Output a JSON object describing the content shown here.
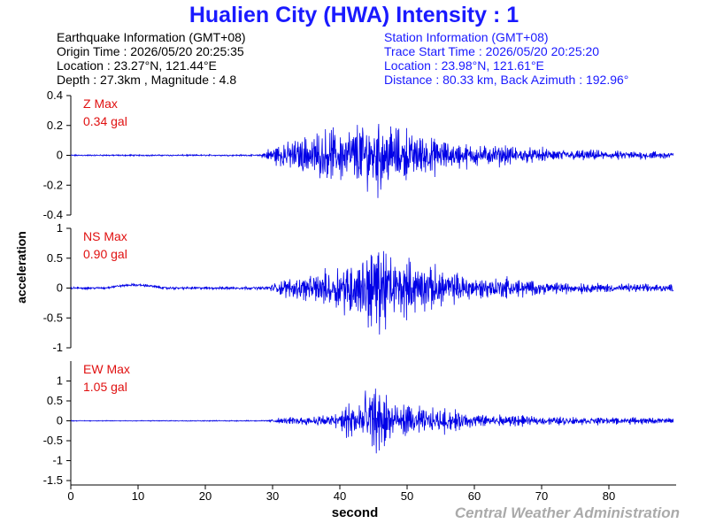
{
  "title": "Hualien City (HWA) Intensity : 1",
  "earthquake_info": {
    "heading": "Earthquake Information (GMT+08)",
    "origin_time": "Origin Time : 2026/05/20 20:25:35",
    "location": "Location : 23.27°N, 121.44°E",
    "depth_magnitude": "Depth : 27.3km , Magnitude : 4.8"
  },
  "station_info": {
    "heading": "Station Information (GMT+08)",
    "trace_start": "Trace Start Time : 2026/05/20 20:25:20",
    "location": "Location : 23.98°N, 121.61°E",
    "distance": "Distance : 80.33 km, Back Azimuth : 192.96°"
  },
  "footer": "Central Weather Administration",
  "colors": {
    "trace": "#0000e6",
    "title": "#1a1aff",
    "max_label": "#e01010",
    "footer": "#aaaaaa"
  },
  "chart_data": {
    "type": "line",
    "xlabel": "second",
    "ylabel": "acceleration",
    "xlim": [
      0,
      90
    ],
    "x_ticks": [
      0,
      10,
      20,
      30,
      40,
      50,
      60,
      70,
      80
    ],
    "x_tick_labels": [
      "0",
      "10",
      "20",
      "30",
      "40",
      "50",
      "60",
      "70",
      "80"
    ],
    "panels": [
      {
        "name": "Z",
        "max_label": "Z Max",
        "max_value": "0.34 gal",
        "ylim": [
          -0.4,
          0.4
        ],
        "y_ticks": [
          0.4,
          0.2,
          0,
          -0.2,
          -0.4
        ],
        "y_tick_labels": [
          "0.4",
          "0.2",
          "0",
          "-0.2",
          "-0.4"
        ],
        "envelope": [
          [
            0,
            0.005
          ],
          [
            28,
            0.006
          ],
          [
            29,
            0.04
          ],
          [
            31,
            0.09
          ],
          [
            35,
            0.15
          ],
          [
            40,
            0.2
          ],
          [
            44,
            0.25
          ],
          [
            46,
            0.3
          ],
          [
            48,
            0.2
          ],
          [
            52,
            0.16
          ],
          [
            56,
            0.1
          ],
          [
            60,
            0.08
          ],
          [
            65,
            0.07
          ],
          [
            70,
            0.05
          ],
          [
            80,
            0.035
          ],
          [
            90,
            0.03
          ]
        ]
      },
      {
        "name": "NS",
        "max_label": "NS Max",
        "max_value": "0.90 gal",
        "ylim": [
          -1,
          1
        ],
        "y_ticks": [
          1,
          0.5,
          0,
          -0.5,
          -1
        ],
        "y_tick_labels": [
          "1",
          "0.5",
          "0",
          "-0.5",
          "-1"
        ],
        "envelope": [
          [
            0,
            0.02
          ],
          [
            29,
            0.03
          ],
          [
            31,
            0.15
          ],
          [
            36,
            0.25
          ],
          [
            40,
            0.45
          ],
          [
            43,
            0.6
          ],
          [
            46,
            0.85
          ],
          [
            48,
            0.55
          ],
          [
            52,
            0.45
          ],
          [
            55,
            0.35
          ],
          [
            60,
            0.2
          ],
          [
            65,
            0.2
          ],
          [
            70,
            0.12
          ],
          [
            80,
            0.08
          ],
          [
            90,
            0.07
          ]
        ]
      },
      {
        "name": "EW",
        "max_label": "EW Max",
        "max_value": "1.05 gal",
        "ylim": [
          -1.5,
          1.5
        ],
        "y_ticks": [
          1,
          0.5,
          0,
          -0.5,
          -1,
          -1.5
        ],
        "y_tick_labels": [
          "1",
          "0.5",
          "0",
          "-0.5",
          "-1",
          "-1.5"
        ],
        "envelope": [
          [
            0,
            0.01
          ],
          [
            29,
            0.015
          ],
          [
            31,
            0.08
          ],
          [
            35,
            0.12
          ],
          [
            39,
            0.2
          ],
          [
            42,
            0.6
          ],
          [
            44,
            0.95
          ],
          [
            46,
            0.9
          ],
          [
            48,
            0.5
          ],
          [
            52,
            0.35
          ],
          [
            56,
            0.3
          ],
          [
            60,
            0.2
          ],
          [
            65,
            0.15
          ],
          [
            70,
            0.12
          ],
          [
            80,
            0.1
          ],
          [
            90,
            0.08
          ]
        ]
      }
    ]
  }
}
